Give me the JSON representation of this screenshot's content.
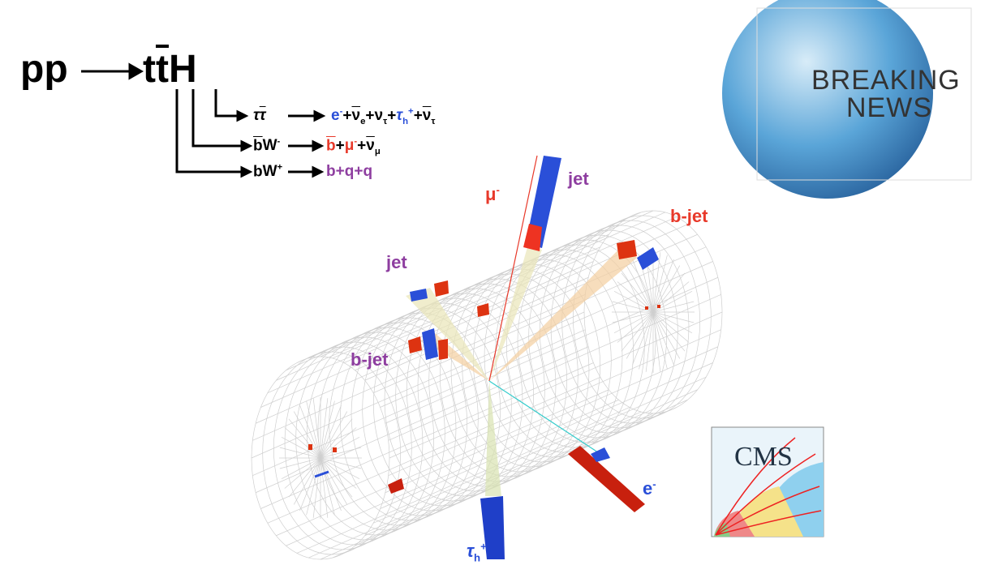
{
  "process": {
    "initial": "pp",
    "final": [
      {
        "text": "t"
      },
      {
        "text": "t",
        "bar": true
      },
      {
        "text": "H"
      }
    ]
  },
  "branches": [
    {
      "intermediate": [
        {
          "text": "τ",
          "italic": true
        },
        {
          "text": "τ",
          "italic": true,
          "bar": true
        }
      ],
      "products": [
        {
          "text": "e",
          "sup": "-",
          "color": "#2a4fd8"
        },
        {
          "text": "+"
        },
        {
          "text": "ν",
          "bar": true,
          "sub": "e"
        },
        {
          "text": "+"
        },
        {
          "text": "ν",
          "sub": "τ"
        },
        {
          "text": "+"
        },
        {
          "text": "τ",
          "italic": true,
          "sub": "h",
          "sup": "+",
          "color": "#2a4fd8"
        },
        {
          "text": "+"
        },
        {
          "text": "ν",
          "bar": true,
          "sub": "τ"
        }
      ]
    },
    {
      "intermediate": [
        {
          "text": "b",
          "bar": true
        },
        {
          "text": "W",
          "sup": "-"
        }
      ],
      "products": [
        {
          "text": "b",
          "bar": true,
          "color": "#e8392a"
        },
        {
          "text": "+"
        },
        {
          "text": "μ",
          "sup": "-",
          "color": "#e8392a"
        },
        {
          "text": "+"
        },
        {
          "text": "ν",
          "bar": true,
          "sub": "μ"
        }
      ]
    },
    {
      "intermediate": [
        {
          "text": "b"
        },
        {
          "text": "W",
          "sup": "+"
        }
      ],
      "products": [
        {
          "text": "b",
          "color": "#8e3ea0"
        },
        {
          "text": "+",
          "color": "#8e3ea0"
        },
        {
          "text": "q",
          "color": "#8e3ea0"
        },
        {
          "text": "+",
          "color": "#8e3ea0"
        },
        {
          "text": "q",
          "color": "#8e3ea0"
        }
      ]
    }
  ],
  "event_labels": [
    {
      "text": "μ",
      "sup": "-",
      "color": "#e8392a"
    },
    {
      "text": "jet",
      "color": "#8e3ea0"
    },
    {
      "text": "b-jet",
      "color": "#e8392a"
    },
    {
      "text": "jet",
      "color": "#8e3ea0"
    },
    {
      "text": "b-jet",
      "color": "#8e3ea0"
    },
    {
      "text": "e",
      "sup": "-",
      "color": "#2a4fd8"
    },
    {
      "text": "τ",
      "italic": true,
      "sub": "h",
      "sup": "+",
      "color": "#2a4fd8"
    }
  ],
  "news": {
    "line1": "BREAKING",
    "line2": "NEWS"
  },
  "logo": {
    "text": "CMS"
  }
}
